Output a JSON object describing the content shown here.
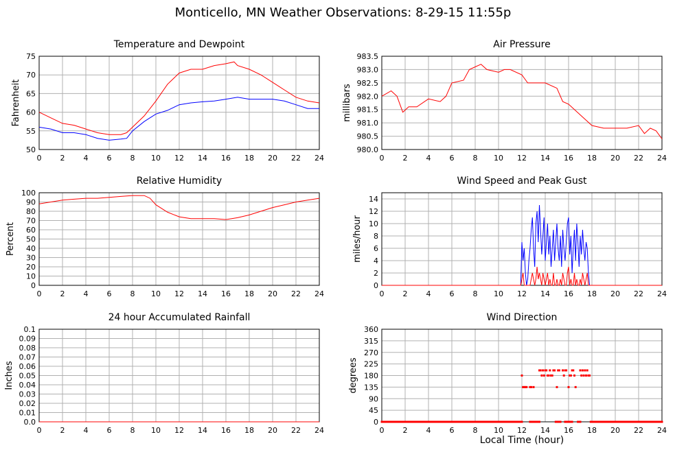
{
  "title": "Monticello, MN Weather Observations: 8-29-15 11:55p",
  "x_axis_label": "Local Time (hour)",
  "colors": {
    "red": "#ff0000",
    "blue": "#0000ff",
    "grid": "#b0b0b0"
  },
  "chart_data": [
    {
      "type": "line",
      "title": "Temperature and Dewpoint",
      "ylabel": "Fahrenheit",
      "ylim": [
        50,
        75
      ],
      "yticks": [
        "50",
        "55",
        "60",
        "65",
        "70",
        "75"
      ],
      "xlim": [
        0,
        24
      ],
      "xticks": [
        "0",
        "2",
        "4",
        "6",
        "8",
        "10",
        "12",
        "14",
        "16",
        "18",
        "20",
        "22",
        "24"
      ],
      "series": [
        {
          "color": "#ff0000",
          "x": [
            0,
            1,
            2,
            3,
            4,
            5,
            6,
            7,
            7.5,
            8,
            9,
            10,
            11,
            12,
            13,
            14,
            15,
            16,
            16.7,
            17,
            18,
            19,
            20,
            21,
            22,
            23,
            24
          ],
          "values": [
            60,
            58.5,
            57,
            56.5,
            55.5,
            54.5,
            54,
            54,
            54.5,
            56,
            59,
            63,
            67.5,
            70.5,
            71.5,
            71.5,
            72.5,
            73,
            73.5,
            72.5,
            71.5,
            70,
            68,
            66,
            64,
            63,
            62.5
          ]
        },
        {
          "color": "#0000ff",
          "x": [
            0,
            1,
            2,
            3,
            4,
            5,
            6,
            7,
            7.5,
            8,
            9,
            10,
            11,
            12,
            13,
            14,
            15,
            16,
            17,
            18,
            19,
            20,
            21,
            22,
            23,
            24
          ],
          "values": [
            56,
            55.5,
            54.5,
            54.5,
            54,
            53,
            52.5,
            52.8,
            53,
            55,
            57.5,
            59.5,
            60.5,
            62,
            62.5,
            62.8,
            63,
            63.5,
            64,
            63.5,
            63.5,
            63.5,
            63,
            62,
            61,
            61
          ]
        }
      ]
    },
    {
      "type": "line",
      "title": "Air Pressure",
      "ylabel": "millibars",
      "ylim": [
        980.0,
        983.5
      ],
      "yticks": [
        "980.0",
        "980.5",
        "981.0",
        "981.5",
        "982.0",
        "982.5",
        "983.0",
        "983.5"
      ],
      "xlim": [
        0,
        24
      ],
      "xticks": [
        "0",
        "2",
        "4",
        "6",
        "8",
        "10",
        "12",
        "14",
        "16",
        "18",
        "20",
        "22",
        "24"
      ],
      "series": [
        {
          "color": "#ff0000",
          "x": [
            0,
            0.8,
            1.3,
            1.8,
            2.3,
            3,
            4,
            5,
            5.5,
            6,
            7,
            7.5,
            8,
            8.5,
            9,
            10,
            10.5,
            11,
            12,
            12.5,
            13,
            14,
            15,
            15.5,
            16,
            17,
            17.5,
            18,
            19,
            20,
            21,
            22,
            22.5,
            23,
            23.5,
            24
          ],
          "values": [
            982.0,
            982.2,
            982.0,
            981.4,
            981.6,
            981.6,
            981.9,
            981.8,
            982.0,
            982.5,
            982.6,
            983.0,
            983.1,
            983.2,
            983.0,
            982.9,
            983.0,
            983.0,
            982.8,
            982.5,
            982.5,
            982.5,
            982.3,
            981.8,
            981.7,
            981.3,
            981.1,
            980.9,
            980.8,
            980.8,
            980.8,
            980.9,
            980.6,
            980.8,
            980.7,
            980.4
          ]
        }
      ]
    },
    {
      "type": "line",
      "title": "Relative Humidity",
      "ylabel": "Percent",
      "ylim": [
        0,
        100
      ],
      "yticks": [
        "0",
        "10",
        "20",
        "30",
        "40",
        "50",
        "60",
        "70",
        "80",
        "90",
        "100"
      ],
      "xlim": [
        0,
        24
      ],
      "xticks": [
        "0",
        "2",
        "4",
        "6",
        "8",
        "10",
        "12",
        "14",
        "16",
        "18",
        "20",
        "22",
        "24"
      ],
      "series": [
        {
          "color": "#ff0000",
          "x": [
            0,
            1,
            2,
            3,
            4,
            5,
            6,
            7,
            8,
            9,
            9.5,
            10,
            11,
            12,
            13,
            14,
            15,
            16,
            17,
            18,
            19,
            20,
            21,
            22,
            23,
            24
          ],
          "values": [
            88,
            90,
            92,
            93,
            94,
            94,
            95,
            96,
            97,
            97,
            94,
            87,
            79,
            74,
            72,
            72,
            72,
            71,
            73,
            76,
            80,
            84,
            87,
            90,
            92,
            94
          ]
        }
      ]
    },
    {
      "type": "line",
      "title": "Wind Speed and Peak Gust",
      "ylabel": "miles/hour",
      "ylim": [
        0,
        15
      ],
      "yticks": [
        "0",
        "2",
        "4",
        "6",
        "8",
        "10",
        "12",
        "14"
      ],
      "xlim": [
        0,
        24
      ],
      "xticks": [
        "0",
        "2",
        "4",
        "6",
        "8",
        "10",
        "12",
        "14",
        "16",
        "18",
        "20",
        "22",
        "24"
      ],
      "series": [
        {
          "color": "#0000ff",
          "x": [
            0,
            11.9,
            12,
            12.1,
            12.2,
            12.3,
            12.4,
            12.5,
            12.6,
            12.7,
            12.8,
            12.9,
            13,
            13.1,
            13.2,
            13.3,
            13.4,
            13.5,
            13.6,
            13.7,
            13.8,
            13.9,
            14,
            14.1,
            14.2,
            14.3,
            14.4,
            14.5,
            14.6,
            14.7,
            14.8,
            14.9,
            15,
            15.1,
            15.2,
            15.3,
            15.4,
            15.5,
            15.6,
            15.7,
            15.8,
            15.9,
            16,
            16.1,
            16.2,
            16.3,
            16.4,
            16.5,
            16.6,
            16.7,
            16.8,
            16.9,
            17,
            17.1,
            17.2,
            17.3,
            17.4,
            17.5,
            17.6,
            17.7,
            17.8,
            17.9,
            24
          ],
          "values": [
            0,
            0,
            7,
            4,
            6,
            2,
            0,
            1,
            4,
            6,
            9,
            11,
            6,
            3,
            10,
            12,
            7,
            13,
            9,
            5,
            8,
            11,
            4,
            7,
            10,
            5,
            8,
            3,
            6,
            9,
            4,
            7,
            10,
            6,
            4,
            8,
            3,
            9,
            6,
            4,
            7,
            10,
            11,
            5,
            8,
            2,
            6,
            9,
            4,
            10,
            7,
            3,
            8,
            5,
            9,
            6,
            4,
            7,
            6,
            2,
            0,
            0,
            0
          ]
        },
        {
          "color": "#ff0000",
          "x": [
            0,
            11.9,
            12,
            12.1,
            12.2,
            12.3,
            12.4,
            12.5,
            12.6,
            12.7,
            12.8,
            12.9,
            13,
            13.1,
            13.2,
            13.3,
            13.4,
            13.5,
            13.6,
            13.7,
            13.8,
            13.9,
            14,
            14.1,
            14.2,
            14.3,
            14.4,
            14.5,
            14.6,
            14.7,
            14.8,
            14.9,
            15,
            15.1,
            15.2,
            15.3,
            15.4,
            15.5,
            15.6,
            15.7,
            15.8,
            15.9,
            16,
            16.1,
            16.2,
            16.3,
            16.4,
            16.5,
            16.6,
            16.7,
            16.8,
            16.9,
            17,
            17.1,
            17.2,
            17.3,
            17.4,
            17.5,
            17.6,
            17.7,
            17.8,
            17.9,
            24
          ],
          "values": [
            0,
            0,
            1,
            2,
            0,
            0,
            0,
            0,
            0,
            0,
            1,
            2,
            1,
            0,
            1,
            3,
            1,
            2,
            1,
            0,
            2,
            1,
            0,
            1,
            2,
            0,
            1,
            0,
            0,
            2,
            0,
            0,
            1,
            0,
            0,
            1,
            0,
            2,
            1,
            0,
            0,
            2,
            3,
            0,
            1,
            0,
            0,
            2,
            0,
            1,
            0,
            0,
            1,
            0,
            2,
            1,
            0,
            1,
            2,
            0,
            0,
            0,
            0
          ]
        }
      ]
    },
    {
      "type": "line",
      "title": "24 hour Accumulated Rainfall",
      "ylabel": "Inches",
      "ylim": [
        0,
        0.1
      ],
      "yticks": [
        "0.0",
        "0.01",
        "0.02",
        "0.03",
        "0.04",
        "0.05",
        "0.06",
        "0.07",
        "0.08",
        "0.09",
        "0.1"
      ],
      "xlim": [
        0,
        24
      ],
      "xticks": [
        "0",
        "2",
        "4",
        "6",
        "8",
        "10",
        "12",
        "14",
        "16",
        "18",
        "20",
        "22",
        "24"
      ],
      "series": [
        {
          "color": "#ff0000",
          "x": [
            0,
            24
          ],
          "values": [
            0,
            0
          ]
        }
      ]
    },
    {
      "type": "scatter",
      "title": "Wind Direction",
      "ylabel": "degrees",
      "ylim": [
        0,
        360
      ],
      "yticks": [
        "0",
        "45",
        "90",
        "135",
        "180",
        "225",
        "270",
        "315",
        "360"
      ],
      "xlim": [
        0,
        24
      ],
      "xticks": [
        "0",
        "2",
        "4",
        "6",
        "8",
        "10",
        "12",
        "14",
        "16",
        "18",
        "20",
        "22",
        "24"
      ],
      "baseline": {
        "y": 0,
        "gaps": [
          [
            12.0,
            12.6
          ],
          [
            13.5,
            14.8
          ],
          [
            15.3,
            15.6
          ],
          [
            16.3,
            16.7
          ],
          [
            17.0,
            17.8
          ]
        ]
      },
      "series": [
        {
          "color": "#ff0000",
          "x": [
            12.0,
            12.1,
            12.2,
            12.3,
            12.4,
            12.7,
            12.8,
            13.0,
            13.5,
            13.6,
            13.7,
            13.8,
            13.9,
            14.0,
            14.1,
            14.2,
            14.3,
            14.4,
            14.5,
            14.6,
            14.7,
            14.8,
            15.0,
            15.1,
            15.2,
            15.5,
            15.6,
            15.7,
            15.8,
            16.0,
            16.1,
            16.2,
            16.3,
            16.4,
            16.5,
            16.6,
            17.0,
            17.1,
            17.2,
            17.3,
            17.4,
            17.5,
            17.6,
            17.7,
            17.8
          ],
          "values": [
            180,
            135,
            135,
            135,
            135,
            135,
            135,
            135,
            200,
            200,
            180,
            200,
            180,
            200,
            200,
            180,
            180,
            200,
            180,
            180,
            200,
            200,
            135,
            200,
            200,
            200,
            180,
            200,
            200,
            135,
            180,
            180,
            200,
            200,
            180,
            135,
            200,
            180,
            200,
            180,
            200,
            180,
            200,
            180,
            180
          ]
        }
      ]
    }
  ]
}
